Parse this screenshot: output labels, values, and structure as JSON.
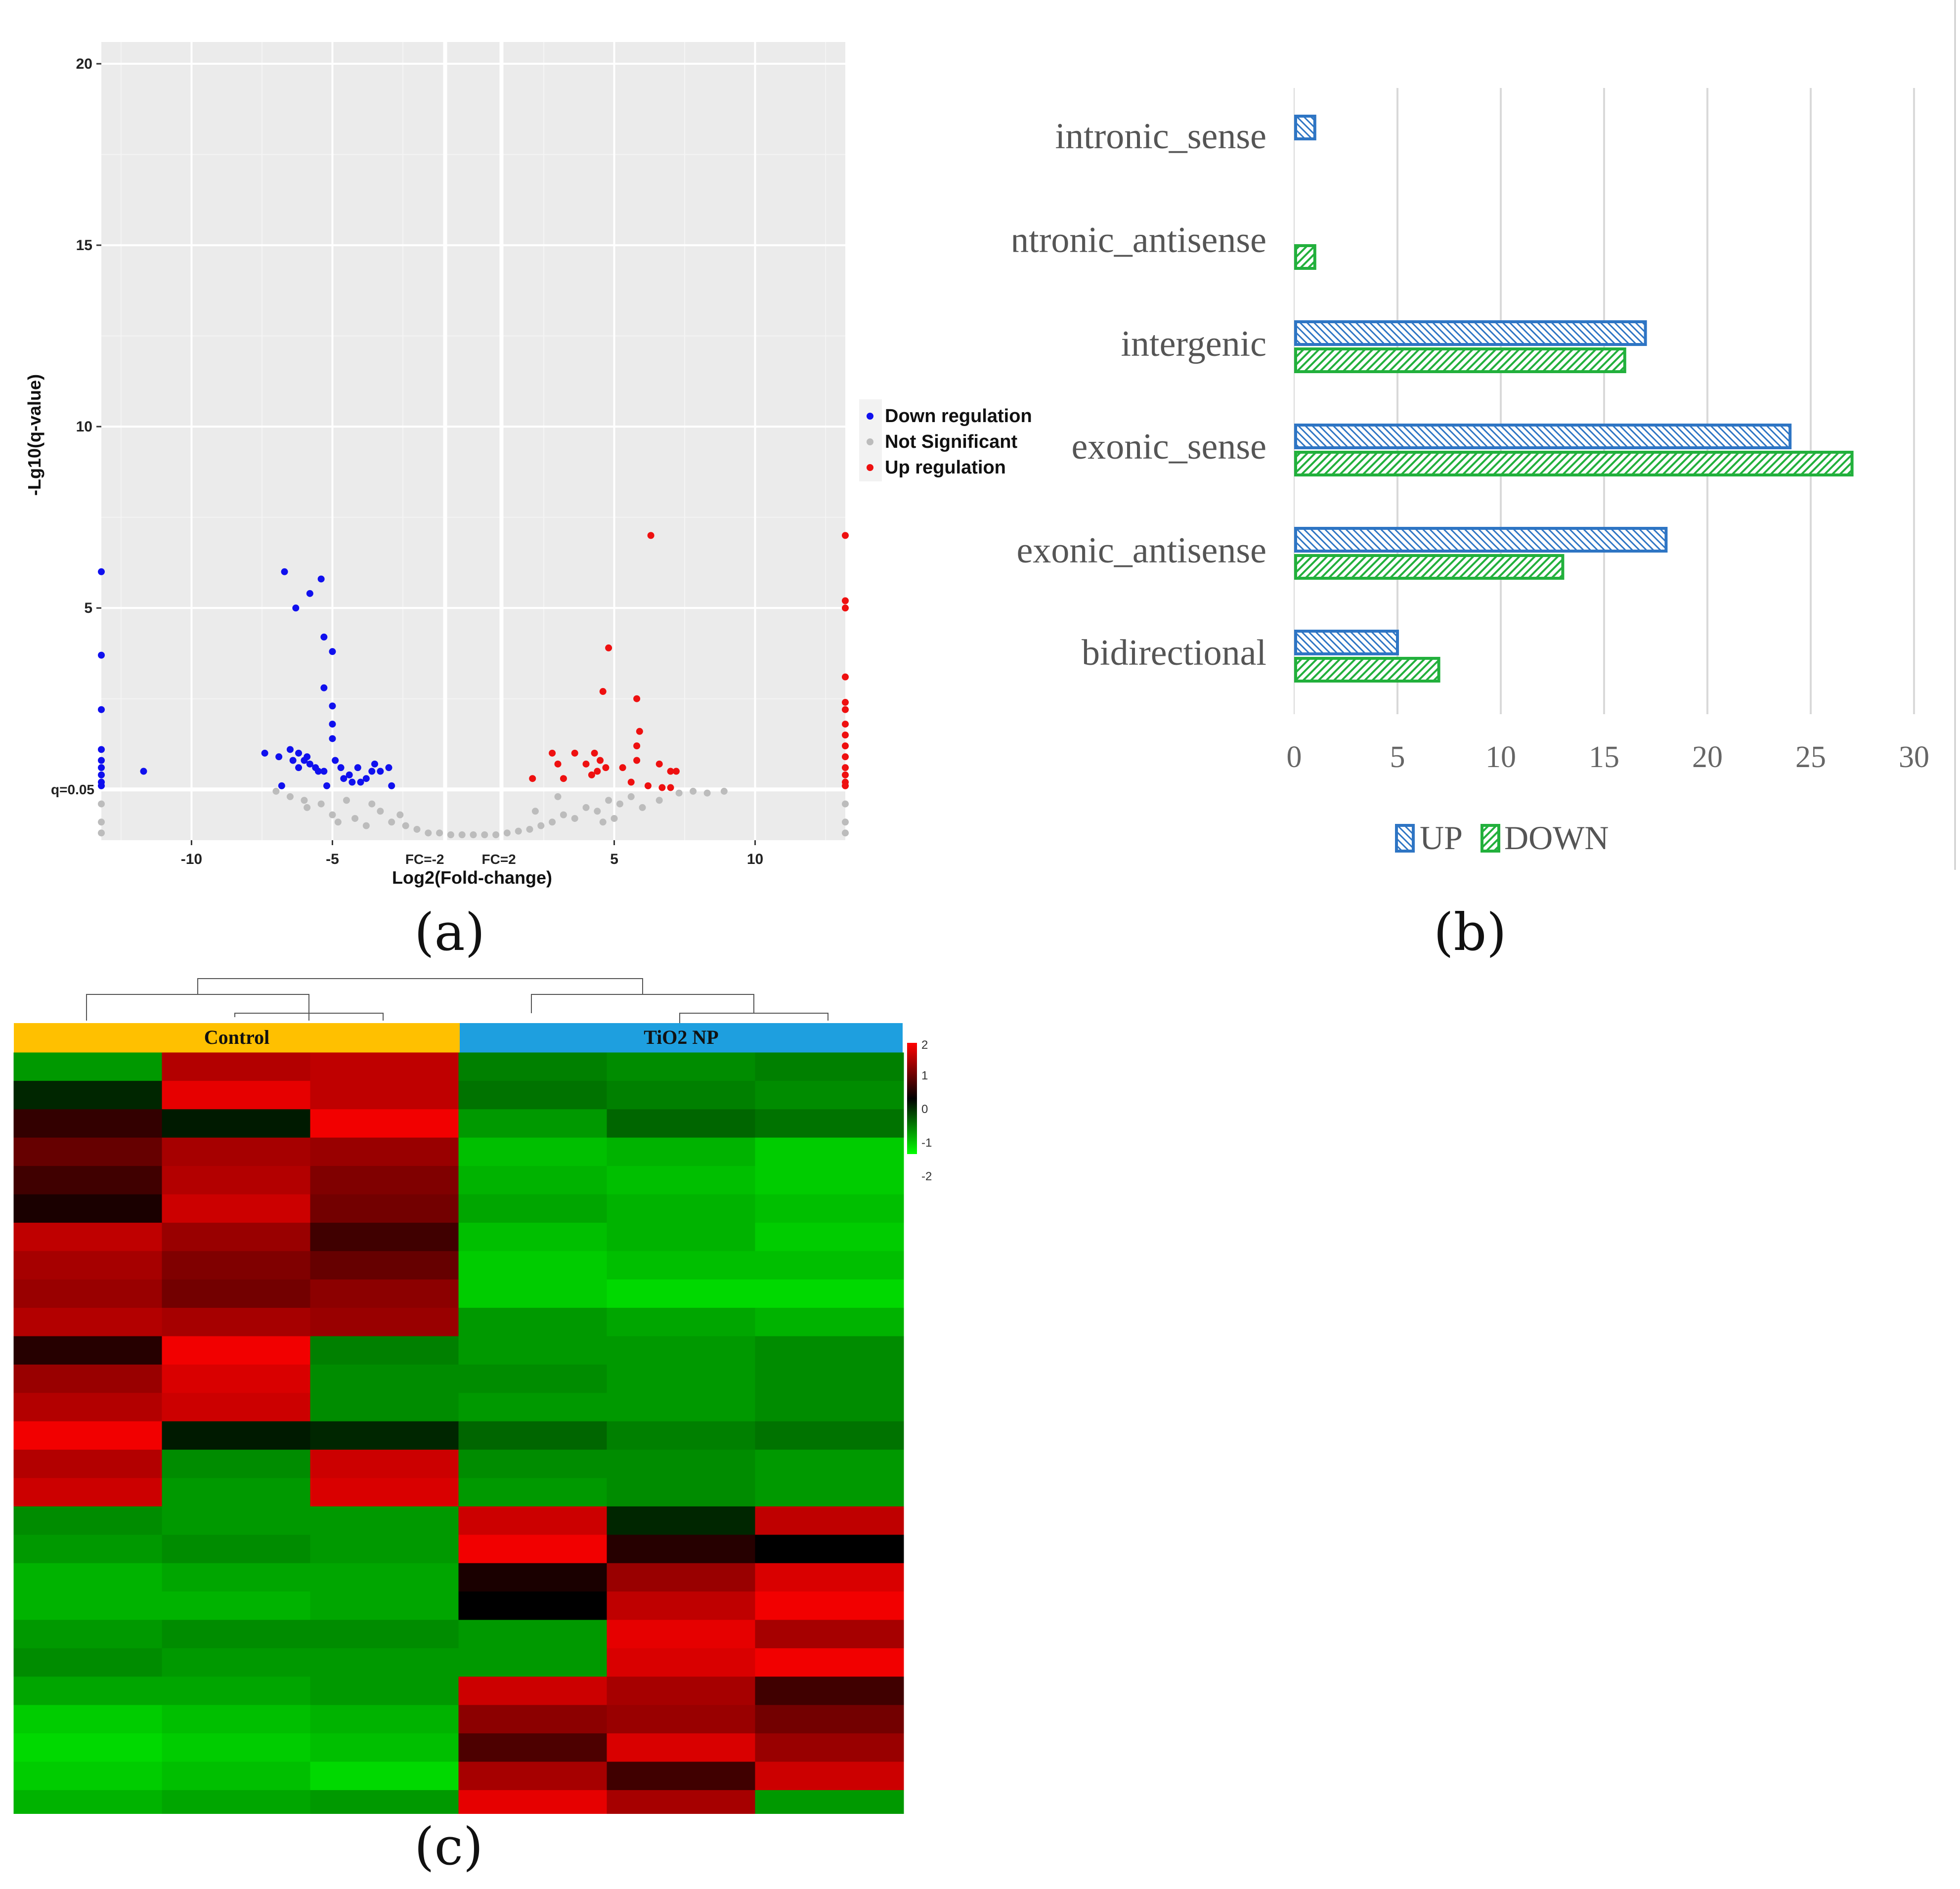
{
  "panel_labels": {
    "a": "(a)",
    "b": "(b)",
    "c": "(c)"
  },
  "chart_data": [
    {
      "id": "a",
      "type": "scatter",
      "title": "",
      "xlabel": "Log2(Fold-change)",
      "ylabel": "-Lg10(q-value)",
      "xlim": [
        -13.2,
        13.2
      ],
      "ylim": [
        -1.4,
        20.6
      ],
      "x_ticks": [
        -10,
        -5,
        5,
        10
      ],
      "x_tick_labels": [
        "-10",
        "-5",
        "5",
        "10"
      ],
      "y_ticks": [
        5,
        10,
        15,
        20
      ],
      "y_tick_labels": [
        "5",
        "10",
        "15",
        "20"
      ],
      "threshold_lines": {
        "vertical": [
          -1,
          1
        ],
        "horizontal": 0
      },
      "threshold_labels": {
        "fc_neg": "FC=-2",
        "fc_pos": "FC=2",
        "q": "q=0.05"
      },
      "legend": {
        "position": "right",
        "entries": [
          "Down regulation",
          "Not Significant",
          "Up regulation"
        ]
      },
      "colors": {
        "down": "#1010ee",
        "ns": "#bcbcbc",
        "up": "#ee1010",
        "panel_bg": "#ebebeb",
        "grid": "#ffffff"
      },
      "series": [
        {
          "name": "Down regulation",
          "points": [
            [
              -13.2,
              6.0
            ],
            [
              -13.2,
              3.7
            ],
            [
              -13.2,
              2.2
            ],
            [
              -13.2,
              1.1
            ],
            [
              -13.2,
              0.8
            ],
            [
              -13.2,
              0.6
            ],
            [
              -13.2,
              0.4
            ],
            [
              -13.2,
              0.2
            ],
            [
              -13.2,
              0.1
            ],
            [
              -11.7,
              0.5
            ],
            [
              -6.7,
              6.0
            ],
            [
              -6.3,
              5.0
            ],
            [
              -5.8,
              5.4
            ],
            [
              -5.4,
              5.8
            ],
            [
              -5.3,
              4.2
            ],
            [
              -5.0,
              3.8
            ],
            [
              -5.3,
              2.8
            ],
            [
              -5.0,
              2.3
            ],
            [
              -5.0,
              1.8
            ],
            [
              -5.0,
              1.4
            ],
            [
              -7.4,
              1.0
            ],
            [
              -6.9,
              0.9
            ],
            [
              -6.5,
              1.1
            ],
            [
              -6.4,
              0.8
            ],
            [
              -6.2,
              1.0
            ],
            [
              -6.2,
              0.6
            ],
            [
              -6.0,
              0.8
            ],
            [
              -5.9,
              0.9
            ],
            [
              -5.8,
              0.7
            ],
            [
              -5.6,
              0.6
            ],
            [
              -5.5,
              0.5
            ],
            [
              -5.3,
              0.5
            ],
            [
              -4.9,
              0.8
            ],
            [
              -4.7,
              0.6
            ],
            [
              -4.6,
              0.3
            ],
            [
              -4.4,
              0.4
            ],
            [
              -4.3,
              0.2
            ],
            [
              -4.1,
              0.6
            ],
            [
              -4.0,
              0.2
            ],
            [
              -3.8,
              0.3
            ],
            [
              -3.6,
              0.5
            ],
            [
              -3.5,
              0.7
            ],
            [
              -3.3,
              0.5
            ],
            [
              -3.0,
              0.6
            ],
            [
              -2.9,
              0.1
            ],
            [
              -6.8,
              0.1
            ],
            [
              -5.2,
              0.1
            ]
          ]
        },
        {
          "name": "Up regulation",
          "points": [
            [
              13.2,
              7.0
            ],
            [
              13.2,
              5.2
            ],
            [
              13.2,
              5.0
            ],
            [
              13.2,
              3.1
            ],
            [
              13.2,
              2.4
            ],
            [
              13.2,
              2.2
            ],
            [
              13.2,
              1.8
            ],
            [
              13.2,
              1.5
            ],
            [
              13.2,
              1.2
            ],
            [
              13.2,
              0.9
            ],
            [
              13.2,
              0.6
            ],
            [
              13.2,
              0.4
            ],
            [
              13.2,
              0.2
            ],
            [
              13.2,
              0.1
            ],
            [
              6.3,
              7.0
            ],
            [
              4.8,
              3.9
            ],
            [
              4.6,
              2.7
            ],
            [
              5.8,
              2.5
            ],
            [
              5.9,
              1.6
            ],
            [
              5.8,
              1.2
            ],
            [
              5.8,
              0.8
            ],
            [
              6.6,
              0.7
            ],
            [
              7.0,
              0.5
            ],
            [
              7.2,
              0.5
            ],
            [
              2.8,
              1.0
            ],
            [
              3.6,
              1.0
            ],
            [
              4.3,
              1.0
            ],
            [
              4.5,
              0.8
            ],
            [
              3.0,
              0.7
            ],
            [
              4.4,
              0.5
            ],
            [
              4.0,
              0.7
            ],
            [
              4.7,
              0.6
            ],
            [
              5.3,
              0.6
            ],
            [
              2.1,
              0.3
            ],
            [
              3.2,
              0.3
            ],
            [
              4.2,
              0.4
            ],
            [
              5.6,
              0.2
            ],
            [
              6.2,
              0.1
            ],
            [
              6.7,
              0.05
            ],
            [
              7.0,
              0.05
            ]
          ]
        },
        {
          "name": "Not Significant",
          "points": [
            [
              -6.5,
              -0.2
            ],
            [
              -5.9,
              -0.5
            ],
            [
              -5.0,
              -0.7
            ],
            [
              -4.5,
              -0.3
            ],
            [
              -4.2,
              -0.8
            ],
            [
              -3.8,
              -1.0
            ],
            [
              -3.3,
              -0.6
            ],
            [
              -2.9,
              -0.9
            ],
            [
              -2.4,
              -1.0
            ],
            [
              -2.0,
              -1.1
            ],
            [
              -1.6,
              -1.2
            ],
            [
              -1.2,
              -1.2
            ],
            [
              -0.8,
              -1.25
            ],
            [
              -0.4,
              -1.25
            ],
            [
              0.0,
              -1.25
            ],
            [
              0.4,
              -1.25
            ],
            [
              0.8,
              -1.25
            ],
            [
              1.2,
              -1.2
            ],
            [
              1.6,
              -1.15
            ],
            [
              2.0,
              -1.1
            ],
            [
              2.4,
              -1.0
            ],
            [
              2.8,
              -0.9
            ],
            [
              3.2,
              -0.7
            ],
            [
              3.6,
              -0.8
            ],
            [
              4.0,
              -0.5
            ],
            [
              4.4,
              -0.6
            ],
            [
              4.8,
              -0.3
            ],
            [
              5.2,
              -0.4
            ],
            [
              5.6,
              -0.2
            ],
            [
              6.0,
              -0.5
            ],
            [
              6.6,
              -0.3
            ],
            [
              7.3,
              -0.1
            ],
            [
              7.8,
              -0.05
            ],
            [
              8.3,
              -0.1
            ],
            [
              8.9,
              -0.05
            ],
            [
              -7.0,
              -0.05
            ],
            [
              -6.0,
              -0.3
            ],
            [
              -3.6,
              -0.4
            ],
            [
              3.0,
              -0.2
            ],
            [
              2.2,
              -0.6
            ],
            [
              -2.6,
              -0.7
            ],
            [
              -5.4,
              -0.4
            ],
            [
              -4.8,
              -0.9
            ],
            [
              4.6,
              -0.9
            ],
            [
              5.0,
              -0.8
            ],
            [
              -13.2,
              -0.4
            ],
            [
              -13.2,
              -0.9
            ],
            [
              -13.2,
              -1.2
            ],
            [
              13.2,
              -0.4
            ],
            [
              13.2,
              -0.9
            ],
            [
              13.2,
              -1.2
            ]
          ]
        }
      ]
    },
    {
      "id": "b",
      "type": "bar",
      "orientation": "horizontal",
      "title": "",
      "categories": [
        "intronic_sense",
        "intronic_antisense",
        "intergenic",
        "exonic_sense",
        "exonic_antisense",
        "bidirectional"
      ],
      "xlim": [
        0,
        30
      ],
      "x_ticks": [
        0,
        5,
        10,
        15,
        20,
        25,
        30
      ],
      "x_tick_labels": [
        "0",
        "5",
        "10",
        "15",
        "20",
        "25",
        "30"
      ],
      "series": [
        {
          "name": "UP",
          "color": "#2e75c4",
          "values": [
            1,
            0,
            17,
            24,
            18,
            5
          ]
        },
        {
          "name": "DOWN",
          "color": "#22b03c",
          "values": [
            0,
            1,
            16,
            27,
            13,
            7
          ]
        }
      ],
      "legend": {
        "position": "bottom",
        "entries": [
          "UP",
          "DOWN"
        ]
      }
    },
    {
      "id": "c",
      "type": "heatmap",
      "title": "",
      "groups": [
        {
          "label": "Control",
          "color": "#ffc000",
          "columns": 3
        },
        {
          "label": "TiO2 NP",
          "color": "#1e9fdf",
          "columns": 3
        }
      ],
      "colorbar": {
        "min": -2,
        "max": 2,
        "tick_labels": [
          "2",
          "1",
          "0",
          "-1",
          "-2"
        ]
      },
      "values": [
        [
          -1.2,
          1.4,
          1.5,
          -1.0,
          -1.1,
          -1.0
        ],
        [
          -0.3,
          1.8,
          1.5,
          -0.9,
          -1.0,
          -1.1
        ],
        [
          0.4,
          -0.2,
          1.9,
          -1.2,
          -0.8,
          -0.9
        ],
        [
          0.8,
          1.3,
          1.2,
          -1.5,
          -1.4,
          -1.6
        ],
        [
          0.5,
          1.4,
          1.0,
          -1.4,
          -1.5,
          -1.6
        ],
        [
          0.2,
          1.6,
          0.9,
          -1.3,
          -1.4,
          -1.5
        ],
        [
          1.5,
          1.2,
          0.5,
          -1.5,
          -1.4,
          -1.6
        ],
        [
          1.3,
          1.0,
          0.8,
          -1.6,
          -1.5,
          -1.5
        ],
        [
          1.2,
          0.9,
          1.1,
          -1.6,
          -1.7,
          -1.7
        ],
        [
          1.4,
          1.3,
          1.2,
          -1.2,
          -1.3,
          -1.4
        ],
        [
          0.3,
          1.9,
          -1.0,
          -1.2,
          -1.2,
          -1.1
        ],
        [
          1.2,
          1.7,
          -1.1,
          -1.1,
          -1.2,
          -1.1
        ],
        [
          1.4,
          1.6,
          -1.1,
          -1.2,
          -1.2,
          -1.1
        ],
        [
          1.9,
          -0.2,
          -0.3,
          -0.8,
          -1.0,
          -0.9
        ],
        [
          1.4,
          -1.1,
          1.6,
          -1.1,
          -1.1,
          -1.2
        ],
        [
          1.6,
          -1.2,
          1.7,
          -1.2,
          -1.1,
          -1.2
        ],
        [
          -1.1,
          -1.2,
          -1.2,
          1.6,
          -0.3,
          1.5
        ],
        [
          -1.2,
          -1.1,
          -1.2,
          1.9,
          0.3,
          0.0
        ],
        [
          -1.4,
          -1.3,
          -1.3,
          0.2,
          1.2,
          1.7
        ],
        [
          -1.4,
          -1.4,
          -1.3,
          0.0,
          1.5,
          1.9
        ],
        [
          -1.2,
          -1.1,
          -1.1,
          -1.2,
          1.8,
          1.3
        ],
        [
          -1.1,
          -1.2,
          -1.2,
          -1.2,
          1.7,
          1.9
        ],
        [
          -1.3,
          -1.3,
          -1.2,
          1.6,
          1.3,
          0.5
        ],
        [
          -1.6,
          -1.5,
          -1.4,
          1.1,
          1.2,
          0.9
        ],
        [
          -1.7,
          -1.6,
          -1.5,
          0.6,
          1.7,
          1.2
        ],
        [
          -1.6,
          -1.5,
          -1.7,
          1.3,
          0.5,
          1.6
        ],
        [
          -1.4,
          -1.3,
          -1.2,
          1.8,
          1.3,
          -1.2
        ],
        [
          -1.2,
          -1.2,
          -1.3,
          1.4,
          1.8,
          -0.1
        ]
      ]
    }
  ]
}
